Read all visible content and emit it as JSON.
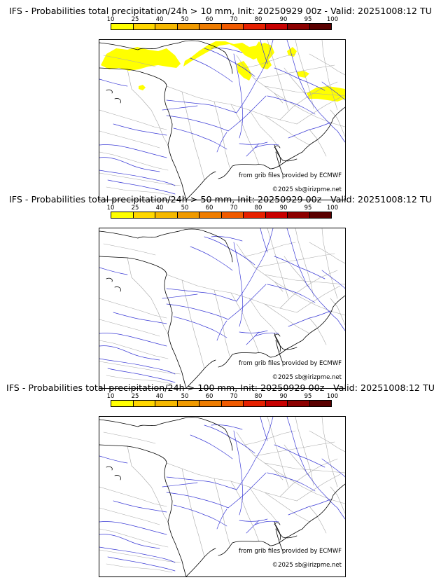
{
  "panels": [
    {
      "title": "IFS - Probabilities total precipitation/24h > 10 mm, Init: 20250929 00z - Valid: 20251008:12 TU",
      "source_credit": "from grib files provided by ECMWF",
      "copyright": "©2025 sb@irizpme.net",
      "has_precip_area": true
    },
    {
      "title": "IFS - Probabilities total precipitation/24h > 50 mm, Init: 20250929 00z - Valid: 20251008:12 TU",
      "source_credit": "from grib files provided by ECMWF",
      "copyright": "©2025 sb@irizpme.net",
      "has_precip_area": false
    },
    {
      "title": "IFS - Probabilities total precipitation/24h > 100 mm, Init: 20250929 00z - Valid: 20251008:12 TU",
      "source_credit": "from grib files provided by ECMWF",
      "copyright": "©2025 sb@irizpme.net",
      "has_precip_area": false
    }
  ],
  "scale": {
    "labels": [
      "10",
      "25",
      "40",
      "50",
      "60",
      "70",
      "80",
      "90",
      "95",
      "100"
    ],
    "colors": [
      "#ffff00",
      "#ffd700",
      "#f5b800",
      "#f09a00",
      "#ee7c00",
      "#f05a00",
      "#e62000",
      "#c80000",
      "#8c0000",
      "#5a0000"
    ]
  },
  "map_colors": {
    "coast": "#000000",
    "borders": "#aaaaaa",
    "rivers": "#3b3bd6",
    "precip": "#ffff00"
  }
}
